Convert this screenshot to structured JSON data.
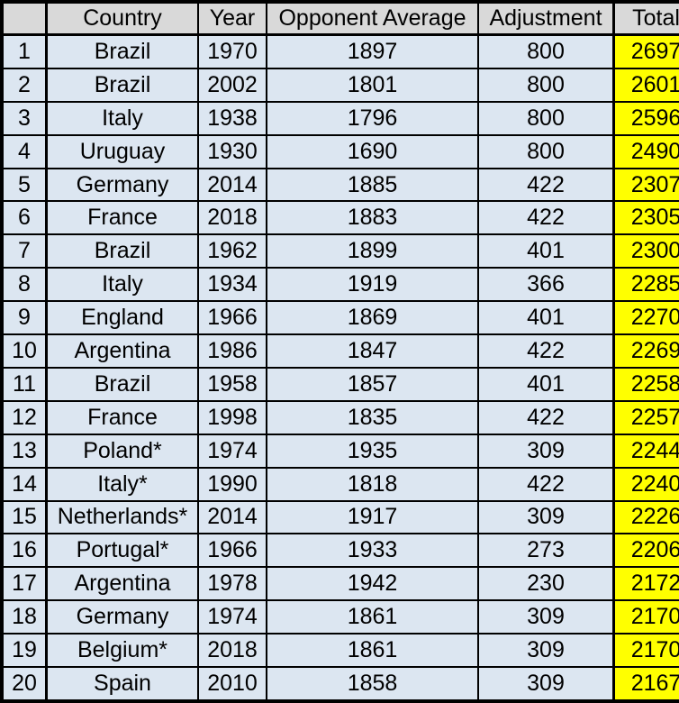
{
  "chart_data": {
    "type": "table",
    "title": "",
    "columns": [
      "",
      "Country",
      "Year",
      "Opponent Average",
      "Adjustment",
      "Total"
    ],
    "rows": [
      [
        1,
        "Brazil",
        1970,
        1897,
        800,
        2697
      ],
      [
        2,
        "Brazil",
        2002,
        1801,
        800,
        2601
      ],
      [
        3,
        "Italy",
        1938,
        1796,
        800,
        2596
      ],
      [
        4,
        "Uruguay",
        1930,
        1690,
        800,
        2490
      ],
      [
        5,
        "Germany",
        2014,
        1885,
        422,
        2307
      ],
      [
        6,
        "France",
        2018,
        1883,
        422,
        2305
      ],
      [
        7,
        "Brazil",
        1962,
        1899,
        401,
        2300
      ],
      [
        8,
        "Italy",
        1934,
        1919,
        366,
        2285
      ],
      [
        9,
        "England",
        1966,
        1869,
        401,
        2270
      ],
      [
        10,
        "Argentina",
        1986,
        1847,
        422,
        2269
      ],
      [
        11,
        "Brazil",
        1958,
        1857,
        401,
        2258
      ],
      [
        12,
        "France",
        1998,
        1835,
        422,
        2257
      ],
      [
        13,
        "Poland*",
        1974,
        1935,
        309,
        2244
      ],
      [
        14,
        "Italy*",
        1990,
        1818,
        422,
        2240
      ],
      [
        15,
        "Netherlands*",
        2014,
        1917,
        309,
        2226
      ],
      [
        16,
        "Portugal*",
        1966,
        1933,
        273,
        2206
      ],
      [
        17,
        "Argentina",
        1978,
        1942,
        230,
        2172
      ],
      [
        18,
        "Germany",
        1974,
        1861,
        309,
        2170
      ],
      [
        19,
        "Belgium*",
        2018,
        1861,
        309,
        2170
      ],
      [
        20,
        "Spain",
        2010,
        1858,
        309,
        2167
      ]
    ]
  },
  "table": {
    "headers": [
      "",
      "Country",
      "Year",
      "Opponent Average",
      "Adjustment",
      "Total"
    ],
    "rows": [
      {
        "rank": "1",
        "country": "Brazil",
        "year": "1970",
        "opponent_average": "1897",
        "adjustment": "800",
        "total": "2697"
      },
      {
        "rank": "2",
        "country": "Brazil",
        "year": "2002",
        "opponent_average": "1801",
        "adjustment": "800",
        "total": "2601"
      },
      {
        "rank": "3",
        "country": "Italy",
        "year": "1938",
        "opponent_average": "1796",
        "adjustment": "800",
        "total": "2596"
      },
      {
        "rank": "4",
        "country": "Uruguay",
        "year": "1930",
        "opponent_average": "1690",
        "adjustment": "800",
        "total": "2490"
      },
      {
        "rank": "5",
        "country": "Germany",
        "year": "2014",
        "opponent_average": "1885",
        "adjustment": "422",
        "total": "2307"
      },
      {
        "rank": "6",
        "country": "France",
        "year": "2018",
        "opponent_average": "1883",
        "adjustment": "422",
        "total": "2305"
      },
      {
        "rank": "7",
        "country": "Brazil",
        "year": "1962",
        "opponent_average": "1899",
        "adjustment": "401",
        "total": "2300"
      },
      {
        "rank": "8",
        "country": "Italy",
        "year": "1934",
        "opponent_average": "1919",
        "adjustment": "366",
        "total": "2285"
      },
      {
        "rank": "9",
        "country": "England",
        "year": "1966",
        "opponent_average": "1869",
        "adjustment": "401",
        "total": "2270"
      },
      {
        "rank": "10",
        "country": "Argentina",
        "year": "1986",
        "opponent_average": "1847",
        "adjustment": "422",
        "total": "2269"
      },
      {
        "rank": "11",
        "country": "Brazil",
        "year": "1958",
        "opponent_average": "1857",
        "adjustment": "401",
        "total": "2258"
      },
      {
        "rank": "12",
        "country": "France",
        "year": "1998",
        "opponent_average": "1835",
        "adjustment": "422",
        "total": "2257"
      },
      {
        "rank": "13",
        "country": "Poland*",
        "year": "1974",
        "opponent_average": "1935",
        "adjustment": "309",
        "total": "2244"
      },
      {
        "rank": "14",
        "country": "Italy*",
        "year": "1990",
        "opponent_average": "1818",
        "adjustment": "422",
        "total": "2240"
      },
      {
        "rank": "15",
        "country": "Netherlands*",
        "year": "2014",
        "opponent_average": "1917",
        "adjustment": "309",
        "total": "2226"
      },
      {
        "rank": "16",
        "country": "Portugal*",
        "year": "1966",
        "opponent_average": "1933",
        "adjustment": "273",
        "total": "2206"
      },
      {
        "rank": "17",
        "country": "Argentina",
        "year": "1978",
        "opponent_average": "1942",
        "adjustment": "230",
        "total": "2172"
      },
      {
        "rank": "18",
        "country": "Germany",
        "year": "1974",
        "opponent_average": "1861",
        "adjustment": "309",
        "total": "2170"
      },
      {
        "rank": "19",
        "country": "Belgium*",
        "year": "2018",
        "opponent_average": "1861",
        "adjustment": "309",
        "total": "2170"
      },
      {
        "rank": "20",
        "country": "Spain",
        "year": "2010",
        "opponent_average": "1858",
        "adjustment": "309",
        "total": "2167"
      }
    ],
    "colors": {
      "header_bg": "#d9d9d9",
      "row_bg": "#dce6f1",
      "total_bg": "#ffff00",
      "border": "#000000"
    }
  }
}
